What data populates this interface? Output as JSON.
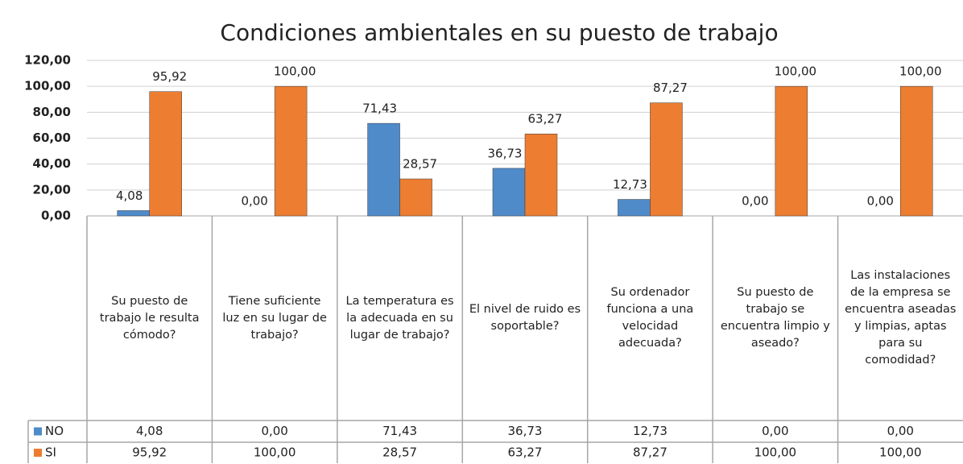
{
  "chart_data": {
    "type": "bar",
    "title": "Condiciones ambientales en su puesto de trabajo",
    "categories": [
      "Su puesto de trabajo le resulta cómodo?",
      "Tiene suficiente luz en su lugar de trabajo?",
      "La temperatura es la adecuada en su lugar de trabajo?",
      "El nivel de ruido es soportable?",
      "Su ordenador funciona a una velocidad adecuada?",
      "Su puesto de trabajo se encuentra limpio y aseado?",
      "Las instalaciones de la empresa se encuentra aseadas y limpias, aptas para su comodidad?"
    ],
    "series": [
      {
        "name": "NO",
        "color": "#4f8bc9",
        "values": [
          4.08,
          0,
          71.43,
          36.73,
          12.73,
          0,
          0
        ],
        "value_labels": [
          "4,08",
          "0,00",
          "71,43",
          "36,73",
          "12,73",
          "0,00",
          "0,00"
        ]
      },
      {
        "name": "SI",
        "color": "#ed7d31",
        "values": [
          95.92,
          100,
          28.57,
          63.27,
          87.27,
          100,
          100
        ],
        "value_labels": [
          "95,92",
          "100,00",
          "28,57",
          "63,27",
          "87,27",
          "100,00",
          "100,00"
        ]
      }
    ],
    "ylim": [
      0,
      120
    ],
    "yticks": [
      {
        "value": 0,
        "label": "0,00"
      },
      {
        "value": 20,
        "label": "20,00"
      },
      {
        "value": 40,
        "label": "40,00"
      },
      {
        "value": 60,
        "label": "60,00"
      },
      {
        "value": 80,
        "label": "80,00"
      },
      {
        "value": 100,
        "label": "100,00"
      },
      {
        "value": 120,
        "label": "120,00"
      }
    ],
    "grid": true
  }
}
